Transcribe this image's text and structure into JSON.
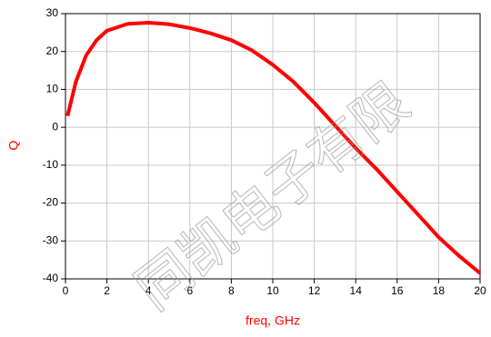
{
  "chart_data": {
    "type": "line",
    "x_label": "freq, GHz",
    "y_label": "Q",
    "watermark": "同凯电子有限",
    "x": [
      0.1,
      0.5,
      1,
      1.5,
      2,
      3,
      4,
      5,
      6,
      7,
      8,
      9,
      10,
      11,
      12,
      13,
      14,
      15,
      16,
      17,
      18,
      19,
      20
    ],
    "series": [
      {
        "name": "Q",
        "color": "#ff0000",
        "values": [
          3,
          12,
          19,
          23,
          25.5,
          27.3,
          27.6,
          27.2,
          26.2,
          24.8,
          23,
          20.3,
          16.5,
          12,
          6.5,
          0.5,
          -5.5,
          -11,
          -17,
          -23,
          -29,
          -34,
          -38.5
        ]
      }
    ],
    "xlim": [
      0,
      20
    ],
    "xticks": [
      0,
      2,
      4,
      6,
      8,
      10,
      12,
      14,
      16,
      18,
      20
    ],
    "ylim": [
      -40,
      30
    ],
    "yticks": [
      -40,
      -30,
      -20,
      -10,
      0,
      10,
      20,
      30
    ],
    "grid": true
  }
}
